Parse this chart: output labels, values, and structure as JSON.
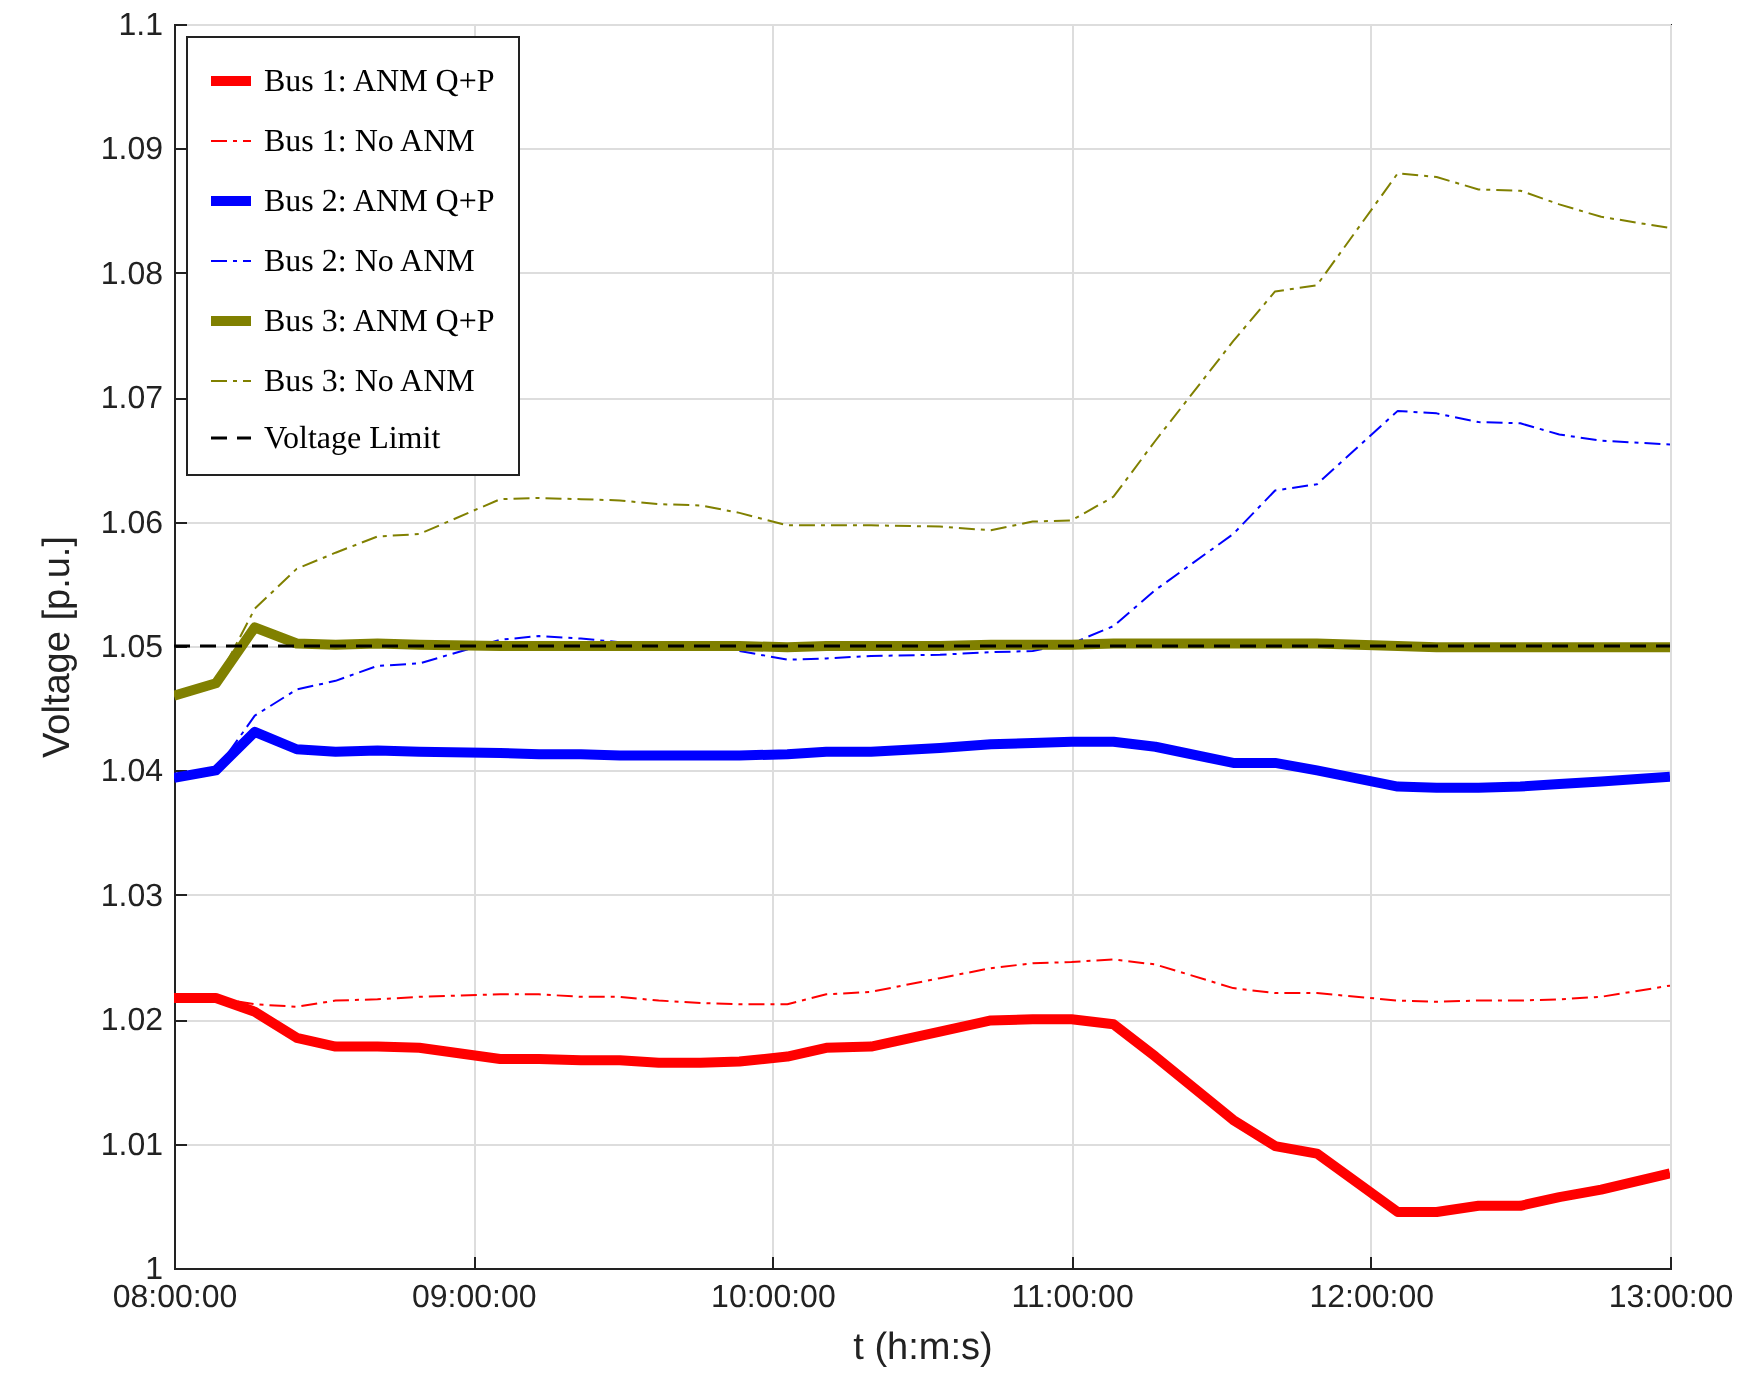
{
  "chart_data": {
    "type": "line",
    "xlabel": "t (h:m:s)",
    "ylabel": "Voltage [p.u.]",
    "x": [
      8.0,
      8.14,
      8.27,
      8.41,
      8.54,
      8.68,
      8.82,
      9.09,
      9.22,
      9.36,
      9.49,
      9.62,
      9.76,
      9.89,
      10.05,
      10.18,
      10.33,
      10.56,
      10.73,
      10.87,
      11.0,
      11.14,
      11.28,
      11.54,
      11.68,
      11.82,
      12.09,
      12.22,
      12.36,
      12.5,
      12.63,
      12.77,
      13.0
    ],
    "series": [
      {
        "name": "Bus 1: ANM Q+P",
        "color": "#ff0000",
        "line_style": "solid",
        "values": [
          1.0217,
          1.0217,
          1.0206,
          1.0185,
          1.0178,
          1.0178,
          1.0177,
          1.0168,
          1.0168,
          1.0167,
          1.0167,
          1.0165,
          1.0165,
          1.0166,
          1.017,
          1.0177,
          1.0178,
          1.019,
          1.0199,
          1.02,
          1.02,
          1.0196,
          1.017,
          1.0119,
          1.0098,
          1.0092,
          1.0045,
          1.0045,
          1.005,
          1.005,
          1.0057,
          1.0063,
          1.0076
        ]
      },
      {
        "name": "Bus 1: No ANM",
        "color": "#ff0000",
        "line_style": "dashdot",
        "values": [
          1.0217,
          1.0217,
          1.0212,
          1.021,
          1.0215,
          1.0216,
          1.0218,
          1.022,
          1.022,
          1.0218,
          1.0218,
          1.0215,
          1.0213,
          1.0212,
          1.0212,
          1.022,
          1.0222,
          1.0233,
          1.0241,
          1.0245,
          1.0246,
          1.0248,
          1.0244,
          1.0225,
          1.0221,
          1.0221,
          1.0215,
          1.0214,
          1.0215,
          1.0215,
          1.0216,
          1.0218,
          1.0227
        ]
      },
      {
        "name": "Bus 2: ANM Q+P",
        "color": "#0000ff",
        "line_style": "solid",
        "values": [
          1.0394,
          1.04,
          1.0431,
          1.0417,
          1.0415,
          1.0416,
          1.0415,
          1.0414,
          1.0413,
          1.0413,
          1.0412,
          1.0412,
          1.0412,
          1.0412,
          1.0413,
          1.0415,
          1.0415,
          1.0418,
          1.0421,
          1.0422,
          1.0423,
          1.0423,
          1.0419,
          1.0406,
          1.0406,
          1.04,
          1.0387,
          1.0386,
          1.0386,
          1.0387,
          1.0389,
          1.0391,
          1.0395
        ]
      },
      {
        "name": "Bus 2: No ANM",
        "color": "#0000ff",
        "line_style": "dashdot",
        "values": [
          1.0394,
          1.04,
          1.0444,
          1.0465,
          1.0472,
          1.0484,
          1.0486,
          1.0505,
          1.0508,
          1.0506,
          1.0503,
          null,
          null,
          1.0496,
          1.0489,
          1.049,
          1.0492,
          1.0493,
          1.0495,
          1.0496,
          1.0502,
          1.0516,
          1.0545,
          1.059,
          1.0625,
          1.063,
          1.0689,
          1.0687,
          1.068,
          1.0679,
          1.067,
          1.0665,
          1.0662
        ]
      },
      {
        "name": "Bus 3: ANM Q+P",
        "color": "#808000",
        "line_style": "solid",
        "values": [
          1.046,
          1.047,
          1.0515,
          1.0502,
          1.0501,
          1.0502,
          1.0501,
          1.05,
          1.05,
          1.05,
          1.05,
          1.05,
          1.05,
          1.05,
          1.0499,
          1.05,
          1.05,
          1.05,
          1.0501,
          1.0501,
          1.0501,
          1.0502,
          1.0502,
          1.0502,
          1.0502,
          1.0502,
          1.05,
          1.0499,
          1.0499,
          1.0499,
          1.0499,
          1.0499,
          1.0499
        ]
      },
      {
        "name": "Bus 3: No ANM",
        "color": "#808000",
        "line_style": "dashdot",
        "values": [
          1.046,
          1.047,
          1.053,
          1.0562,
          1.0575,
          1.0588,
          1.059,
          1.0618,
          1.0619,
          1.0618,
          1.0617,
          1.0614,
          1.0613,
          1.0607,
          1.0597,
          1.0597,
          1.0597,
          1.0596,
          1.0593,
          1.06,
          1.0601,
          1.062,
          1.0665,
          1.0745,
          1.0785,
          1.079,
          1.088,
          1.0877,
          1.0867,
          1.0866,
          1.0855,
          1.0845,
          1.0836
        ]
      }
    ],
    "ref_lines": [
      {
        "axis": "y",
        "value": 1.05,
        "label": "Voltage Limit",
        "color": "#000000",
        "line_style": "dashed"
      }
    ],
    "xlim": [
      8,
      13
    ],
    "xticks": [
      {
        "value": 8,
        "label": "08:00:00"
      },
      {
        "value": 9,
        "label": "09:00:00"
      },
      {
        "value": 10,
        "label": "10:00:00"
      },
      {
        "value": 11,
        "label": "11:00:00"
      },
      {
        "value": 12,
        "label": "12:00:00"
      },
      {
        "value": 13,
        "label": "13:00:00"
      }
    ],
    "ylim": [
      1,
      1.1
    ],
    "yticks": [
      1,
      1.01,
      1.02,
      1.03,
      1.04,
      1.05,
      1.06,
      1.07,
      1.08,
      1.09,
      1.1
    ],
    "grid": true,
    "legend": "top left",
    "marker": "none"
  }
}
